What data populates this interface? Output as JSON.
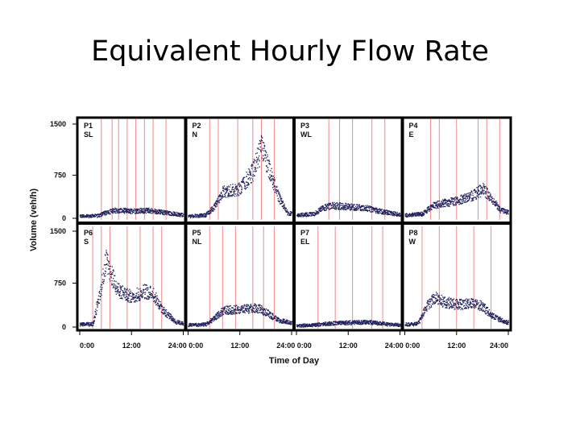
{
  "slide": {
    "title": "Equivalent Hourly Flow Rate"
  },
  "chart_data": {
    "type": "scatter",
    "xlabel": "Time of Day",
    "ylabel": "Volume (veh/h)",
    "ylim": [
      0,
      1500
    ],
    "y_ticks": [
      "0",
      "750",
      "1500"
    ],
    "x_ticks": [
      "0:00",
      "12:00",
      "24:00"
    ],
    "x_range_hours": [
      0,
      24
    ],
    "colors": {
      "points": "#1f1f5a",
      "markers": "#f08a8a",
      "frame": "#000000"
    },
    "panels": [
      {
        "label": "P1",
        "direction": "SL",
        "row": 0,
        "col": 0,
        "markers_h": [
          5,
          7.5,
          9,
          11,
          13,
          15,
          17,
          20
        ],
        "profile": [
          [
            0,
            40
          ],
          [
            4,
            50
          ],
          [
            6,
            100
          ],
          [
            8,
            140
          ],
          [
            12,
            130
          ],
          [
            16,
            140
          ],
          [
            19,
            110
          ],
          [
            22,
            80
          ],
          [
            24,
            60
          ]
        ]
      },
      {
        "label": "P2",
        "direction": "N",
        "row": 0,
        "col": 1,
        "markers_h": [
          5,
          7,
          11.5,
          15,
          17,
          20
        ],
        "profile": [
          [
            0,
            40
          ],
          [
            4,
            60
          ],
          [
            6,
            200
          ],
          [
            8,
            450
          ],
          [
            12,
            500
          ],
          [
            15,
            800
          ],
          [
            17,
            1200
          ],
          [
            19,
            750
          ],
          [
            21,
            350
          ],
          [
            23,
            100
          ],
          [
            24,
            80
          ]
        ]
      },
      {
        "label": "P3",
        "direction": "WL",
        "row": 0,
        "col": 2,
        "markers_h": [
          7.5,
          10,
          13,
          17.5,
          20.5
        ],
        "profile": [
          [
            0,
            60
          ],
          [
            4,
            80
          ],
          [
            6,
            180
          ],
          [
            8,
            220
          ],
          [
            12,
            200
          ],
          [
            16,
            180
          ],
          [
            19,
            130
          ],
          [
            22,
            90
          ],
          [
            24,
            70
          ]
        ]
      },
      {
        "label": "P4",
        "direction": "E",
        "row": 0,
        "col": 3,
        "markers_h": [
          6,
          8,
          12,
          17,
          19,
          22
        ],
        "profile": [
          [
            0,
            60
          ],
          [
            4,
            80
          ],
          [
            6,
            200
          ],
          [
            8,
            250
          ],
          [
            12,
            300
          ],
          [
            16,
            400
          ],
          [
            18,
            500
          ],
          [
            20,
            350
          ],
          [
            22,
            150
          ],
          [
            24,
            100
          ]
        ]
      },
      {
        "label": "P6",
        "direction": "S",
        "row": 1,
        "col": 0,
        "markers_h": [
          3,
          5,
          7,
          11,
          14,
          17,
          19
        ],
        "profile": [
          [
            0,
            50
          ],
          [
            3,
            60
          ],
          [
            5,
            700
          ],
          [
            6,
            1100
          ],
          [
            7,
            900
          ],
          [
            9,
            600
          ],
          [
            12,
            500
          ],
          [
            15,
            600
          ],
          [
            17,
            550
          ],
          [
            19,
            300
          ],
          [
            22,
            100
          ],
          [
            24,
            60
          ]
        ]
      },
      {
        "label": "P5",
        "direction": "NL",
        "row": 1,
        "col": 1,
        "markers_h": [
          5,
          8,
          11,
          15,
          17.5,
          20
        ],
        "profile": [
          [
            0,
            40
          ],
          [
            4,
            50
          ],
          [
            6,
            150
          ],
          [
            8,
            280
          ],
          [
            12,
            300
          ],
          [
            16,
            320
          ],
          [
            18,
            250
          ],
          [
            21,
            120
          ],
          [
            24,
            70
          ]
        ]
      },
      {
        "label": "P7",
        "direction": "EL",
        "row": 1,
        "col": 2,
        "markers_h": [
          5,
          9,
          13,
          17.5,
          20
        ],
        "profile": [
          [
            0,
            30
          ],
          [
            4,
            40
          ],
          [
            6,
            60
          ],
          [
            9,
            70
          ],
          [
            12,
            80
          ],
          [
            16,
            90
          ],
          [
            19,
            70
          ],
          [
            22,
            50
          ],
          [
            24,
            40
          ]
        ]
      },
      {
        "label": "P8",
        "direction": "W",
        "row": 1,
        "col": 3,
        "markers_h": [
          4,
          8,
          12,
          16,
          20
        ],
        "profile": [
          [
            0,
            50
          ],
          [
            3,
            60
          ],
          [
            5,
            350
          ],
          [
            7,
            500
          ],
          [
            9,
            420
          ],
          [
            12,
            380
          ],
          [
            16,
            400
          ],
          [
            18,
            350
          ],
          [
            20,
            200
          ],
          [
            23,
            100
          ],
          [
            24,
            80
          ]
        ]
      }
    ]
  }
}
